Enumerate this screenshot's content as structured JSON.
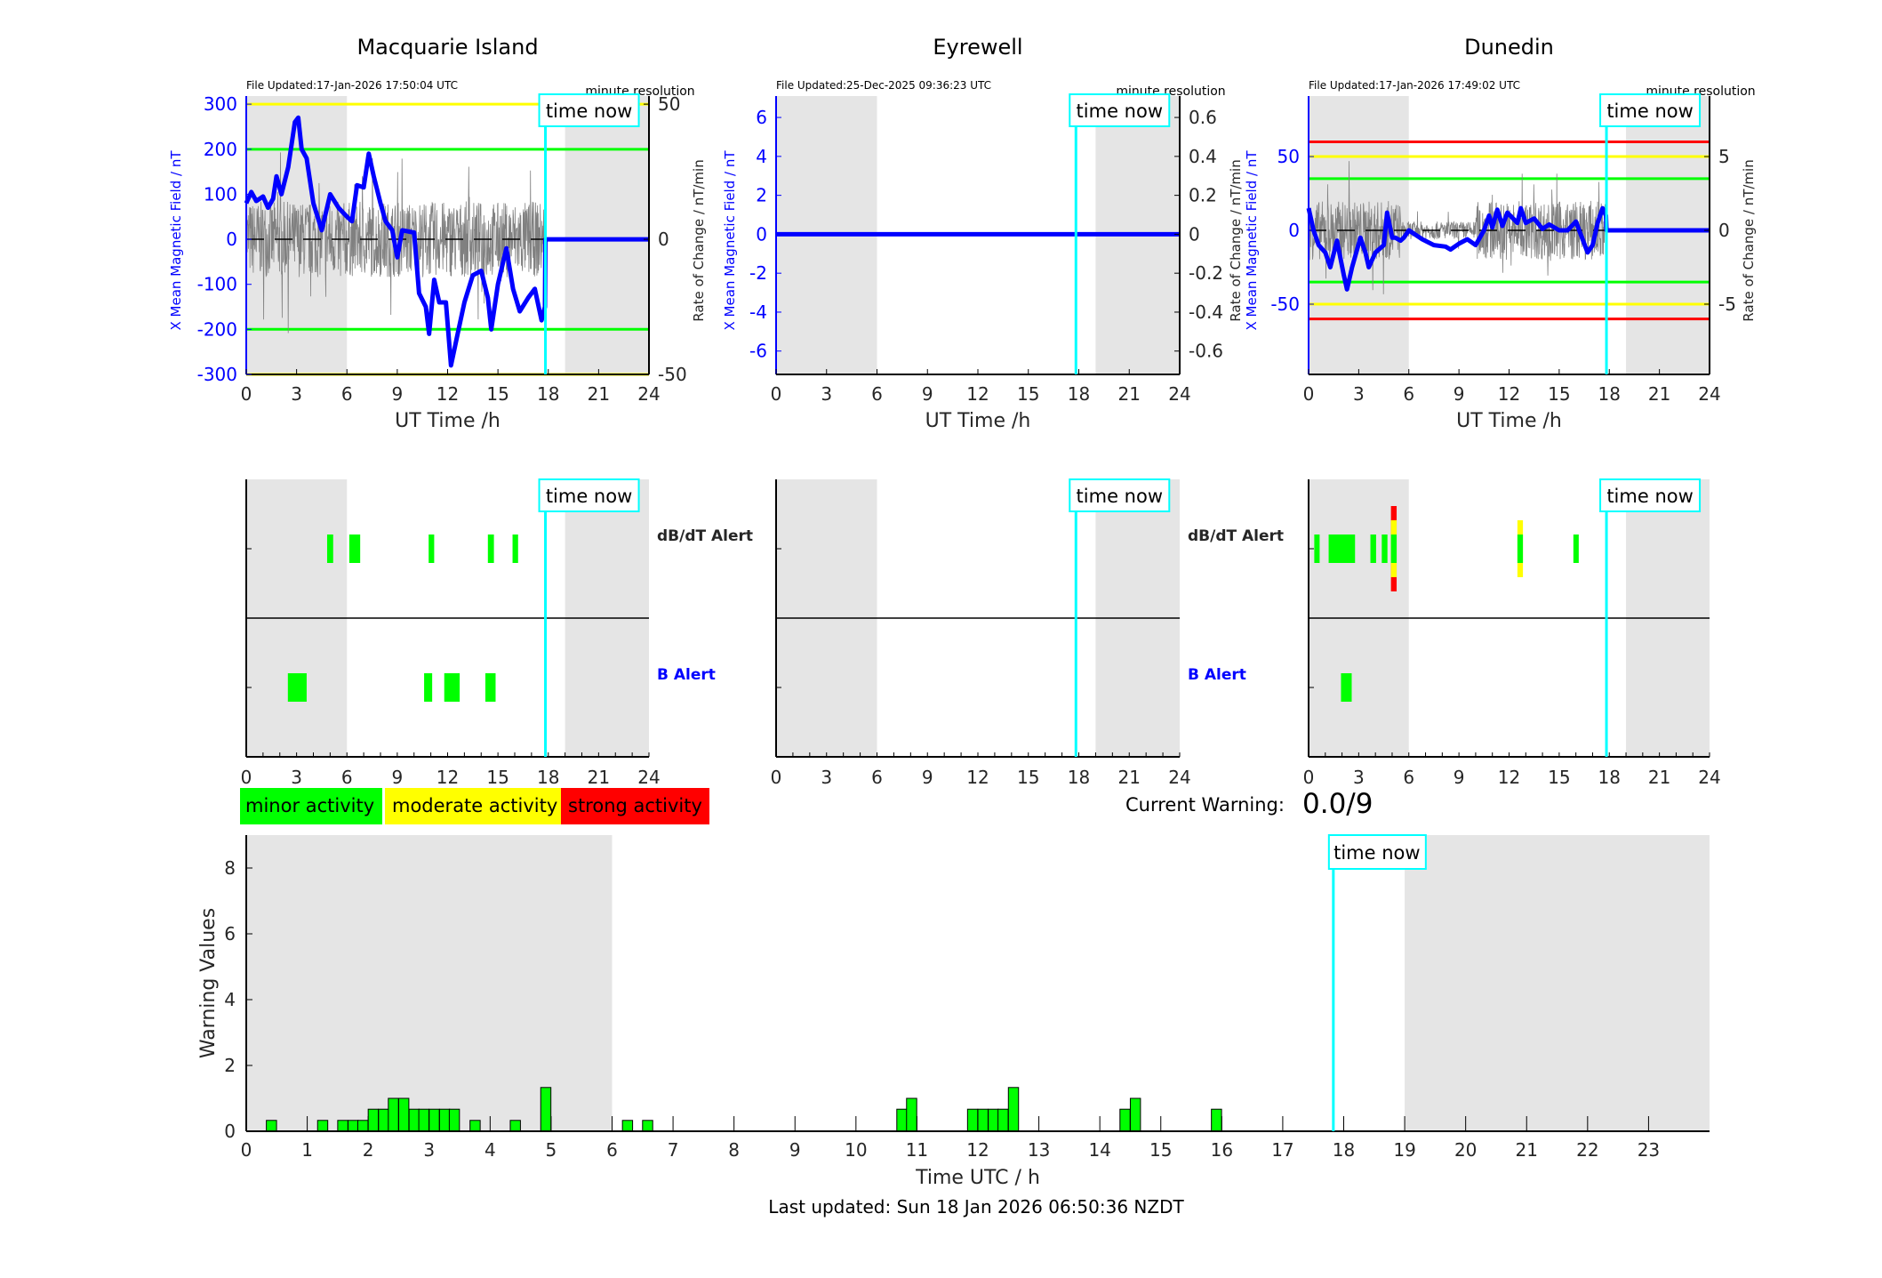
{
  "time_now_label": "time now",
  "colors": {
    "minor": "#00FF00",
    "moderate": "#FFFF00",
    "strong": "#FF0000",
    "field_line": "#0000FF",
    "time_now": "#00FFFF",
    "night_shading": "#E5E5E5",
    "rate_trace": "#808080"
  },
  "legend": {
    "minor": "minor activity",
    "moderate": "moderate activity",
    "strong": "strong activity"
  },
  "current_warning": {
    "label": "Current Warning:",
    "value": "0.0/9"
  },
  "footer": {
    "last_updated": "Last updated: Sun 18 Jan 2026 06:50:36 NZDT"
  },
  "chart_data": [
    {
      "type": "line",
      "title": "Macquarie Island",
      "file_updated": "File Updated:17-Jan-2026 17:50:04 UTC",
      "resolution": "minute resolution",
      "xlabel": "UT Time /h",
      "ylabel_left": "X Mean Magnetic Field / nT",
      "ylabel_right": "Rate of Change / nT/min",
      "xlim": [
        0,
        24
      ],
      "xticks": [
        0,
        3,
        6,
        9,
        12,
        15,
        18,
        21,
        24
      ],
      "ylim_left": [
        -300,
        318
      ],
      "yticks_left": [
        -300,
        -200,
        -100,
        0,
        100,
        200,
        300
      ],
      "ylim_right": [
        -50,
        53
      ],
      "yticks_right": [
        -50,
        0,
        50
      ],
      "shaded_hours": [
        [
          0,
          6
        ],
        [
          19,
          24
        ]
      ],
      "time_now_hour": 17.83,
      "thresholds_right": [
        {
          "value": 50,
          "level": "moderate"
        },
        {
          "value": -50,
          "level": "moderate"
        },
        {
          "value": 33.3,
          "level": "minor"
        },
        {
          "value": -33.3,
          "level": "minor"
        }
      ],
      "rate_amplitude": 14,
      "x_field": [
        [
          0,
          80
        ],
        [
          0.3,
          105
        ],
        [
          0.6,
          85
        ],
        [
          1,
          95
        ],
        [
          1.3,
          70
        ],
        [
          1.6,
          90
        ],
        [
          1.8,
          140
        ],
        [
          2.1,
          100
        ],
        [
          2.5,
          160
        ],
        [
          2.9,
          260
        ],
        [
          3.1,
          270
        ],
        [
          3.3,
          200
        ],
        [
          3.6,
          180
        ],
        [
          4,
          80
        ],
        [
          4.5,
          20
        ],
        [
          5,
          100
        ],
        [
          5.5,
          70
        ],
        [
          6,
          50
        ],
        [
          6.3,
          40
        ],
        [
          6.6,
          120
        ],
        [
          7,
          115
        ],
        [
          7.3,
          190
        ],
        [
          7.6,
          140
        ],
        [
          8,
          80
        ],
        [
          8.3,
          40
        ],
        [
          8.7,
          20
        ],
        [
          9,
          -40
        ],
        [
          9.3,
          20
        ],
        [
          10,
          15
        ],
        [
          10.3,
          -120
        ],
        [
          10.7,
          -150
        ],
        [
          10.9,
          -210
        ],
        [
          11.2,
          -90
        ],
        [
          11.5,
          -140
        ],
        [
          11.9,
          -140
        ],
        [
          12.2,
          -280
        ],
        [
          12.6,
          -210
        ],
        [
          13,
          -140
        ],
        [
          13.5,
          -80
        ],
        [
          14,
          -70
        ],
        [
          14.4,
          -130
        ],
        [
          14.6,
          -200
        ],
        [
          15,
          -100
        ],
        [
          15.5,
          -20
        ],
        [
          15.9,
          -110
        ],
        [
          16.3,
          -160
        ],
        [
          16.8,
          -130
        ],
        [
          17.2,
          -110
        ],
        [
          17.6,
          -180
        ],
        [
          17.8,
          -150
        ],
        [
          17.83,
          0
        ],
        [
          24,
          0
        ]
      ],
      "alerts": {
        "dbdt_label": "dB/dT Alert",
        "b_label": "B Alert",
        "dbdt": [
          [
            4.82,
            5.18,
            1
          ],
          [
            6.14,
            6.79,
            1
          ],
          [
            10.87,
            11.2,
            1
          ],
          [
            14.4,
            14.76,
            1
          ],
          [
            15.87,
            16.2,
            1
          ]
        ],
        "b": [
          [
            2.48,
            3.6,
            1
          ],
          [
            10.6,
            11.08,
            1
          ],
          [
            11.8,
            12.72,
            1
          ],
          [
            14.25,
            14.86,
            1
          ]
        ]
      }
    },
    {
      "type": "line",
      "title": "Eyrewell",
      "file_updated": "File Updated:25-Dec-2025 09:36:23 UTC",
      "resolution": "minute resolution",
      "xlabel": "UT Time /h",
      "ylabel_left": "X Mean Magnetic Field / nT",
      "ylabel_right": "Rate of Change / nT/min",
      "xlim": [
        0,
        24
      ],
      "xticks": [
        0,
        3,
        6,
        9,
        12,
        15,
        18,
        21,
        24
      ],
      "ylim_left": [
        -7.2,
        7.1
      ],
      "yticks_left": [
        -6,
        -4,
        -2,
        0,
        2,
        4,
        6
      ],
      "ylim_right": [
        -0.72,
        0.71
      ],
      "yticks_right": [
        -0.6,
        -0.4,
        -0.2,
        0,
        0.2,
        0.4,
        0.6
      ],
      "shaded_hours": [
        [
          0,
          6
        ],
        [
          19,
          24
        ]
      ],
      "time_now_hour": 17.83,
      "thresholds_right": [],
      "rate_amplitude": 0,
      "x_field": [
        [
          0,
          0
        ],
        [
          24,
          0
        ]
      ],
      "alerts": {
        "dbdt_label": "dB/dT Alert",
        "b_label": "B Alert",
        "dbdt": [],
        "b": []
      }
    },
    {
      "type": "line",
      "title": "Dunedin",
      "file_updated": "File Updated:17-Jan-2026 17:49:02 UTC",
      "resolution": "minute resolution",
      "xlabel": "UT Time /h",
      "ylabel_left": "X Mean Magnetic Field / nT",
      "ylabel_right": "Rate of Change / nT/min",
      "xlim": [
        0,
        24
      ],
      "xticks": [
        0,
        3,
        6,
        9,
        12,
        15,
        18,
        21,
        24
      ],
      "ylim_left": [
        -97.6,
        91
      ],
      "yticks_left": [
        -50,
        0,
        50
      ],
      "ylim_right": [
        -9.76,
        9.1
      ],
      "yticks_right": [
        -5,
        0,
        5
      ],
      "shaded_hours": [
        [
          0,
          6
        ],
        [
          19,
          24
        ]
      ],
      "time_now_hour": 17.83,
      "thresholds_right": [
        {
          "value": 6,
          "level": "strong"
        },
        {
          "value": -6,
          "level": "strong"
        },
        {
          "value": 5,
          "level": "moderate"
        },
        {
          "value": -5,
          "level": "moderate"
        },
        {
          "value": 3.5,
          "level": "minor"
        },
        {
          "value": -3.5,
          "level": "minor"
        }
      ],
      "rate_amplitude": 2,
      "x_field": [
        [
          0,
          15
        ],
        [
          0.3,
          0
        ],
        [
          0.6,
          -10
        ],
        [
          1,
          -15
        ],
        [
          1.3,
          -25
        ],
        [
          1.7,
          -7
        ],
        [
          2.1,
          -30
        ],
        [
          2.3,
          -40
        ],
        [
          2.6,
          -25
        ],
        [
          3.1,
          -5
        ],
        [
          3.4,
          -15
        ],
        [
          3.6,
          -25
        ],
        [
          4,
          -15
        ],
        [
          4.5,
          -10
        ],
        [
          4.7,
          12
        ],
        [
          5,
          -5
        ],
        [
          5.2,
          -5
        ],
        [
          5.5,
          -7
        ],
        [
          5.7,
          -5
        ],
        [
          6,
          0
        ],
        [
          6.8,
          -6
        ],
        [
          7.5,
          -10
        ],
        [
          8.2,
          -11
        ],
        [
          8.5,
          -13
        ],
        [
          9,
          -9
        ],
        [
          9.5,
          -6
        ],
        [
          10,
          -10
        ],
        [
          10.5,
          0
        ],
        [
          10.8,
          10
        ],
        [
          11,
          2
        ],
        [
          11.3,
          14
        ],
        [
          11.6,
          3
        ],
        [
          11.9,
          12
        ],
        [
          12.5,
          5
        ],
        [
          12.7,
          15
        ],
        [
          13,
          5
        ],
        [
          13.5,
          8
        ],
        [
          14,
          1
        ],
        [
          14.4,
          4
        ],
        [
          15,
          0
        ],
        [
          15.5,
          0
        ],
        [
          16,
          6
        ],
        [
          16.3,
          -3
        ],
        [
          16.7,
          -15
        ],
        [
          17,
          -10
        ],
        [
          17.3,
          5
        ],
        [
          17.6,
          15
        ],
        [
          17.8,
          10
        ],
        [
          17.83,
          0
        ],
        [
          24,
          0
        ]
      ],
      "alerts": {
        "dbdt_label": "dB/dT Alert",
        "b_label": "B Alert",
        "dbdt": [
          [
            0.34,
            0.66,
            1
          ],
          [
            1.2,
            2.78,
            1
          ],
          [
            3.7,
            4.04,
            1
          ],
          [
            4.38,
            4.72,
            1
          ],
          [
            4.93,
            5.27,
            3
          ],
          [
            12.5,
            12.83,
            2
          ],
          [
            15.85,
            16.17,
            1
          ]
        ],
        "b": [
          [
            1.94,
            2.58,
            1
          ]
        ]
      }
    },
    {
      "type": "bar",
      "xlabel": "Time UTC / h",
      "ylabel": "Warning Values",
      "xlim": [
        0,
        24
      ],
      "xticks": [
        0,
        1,
        2,
        3,
        4,
        5,
        6,
        7,
        8,
        9,
        10,
        11,
        12,
        13,
        14,
        15,
        16,
        17,
        18,
        19,
        20,
        21,
        22,
        23
      ],
      "ylim": [
        0,
        9
      ],
      "yticks": [
        0,
        2,
        4,
        6,
        8
      ],
      "shaded_hours": [
        [
          0,
          6
        ],
        [
          19,
          24
        ]
      ],
      "time_now_hour": 17.83,
      "bin_width_hours": 0.1667,
      "bars": [
        [
          0.33,
          0.33
        ],
        [
          1.17,
          0.33
        ],
        [
          1.5,
          0.33
        ],
        [
          1.67,
          0.33
        ],
        [
          1.83,
          0.33
        ],
        [
          2.0,
          0.67
        ],
        [
          2.17,
          0.67
        ],
        [
          2.33,
          1.0
        ],
        [
          2.5,
          1.0
        ],
        [
          2.67,
          0.67
        ],
        [
          2.83,
          0.67
        ],
        [
          3.0,
          0.67
        ],
        [
          3.17,
          0.67
        ],
        [
          3.33,
          0.67
        ],
        [
          3.67,
          0.33
        ],
        [
          4.33,
          0.33
        ],
        [
          4.83,
          1.33
        ],
        [
          6.17,
          0.33
        ],
        [
          6.5,
          0.33
        ],
        [
          10.67,
          0.67
        ],
        [
          10.83,
          1.0
        ],
        [
          11.83,
          0.67
        ],
        [
          12.0,
          0.67
        ],
        [
          12.17,
          0.67
        ],
        [
          12.33,
          0.67
        ],
        [
          12.5,
          1.33
        ],
        [
          14.33,
          0.67
        ],
        [
          14.5,
          1.0
        ],
        [
          15.83,
          0.67
        ]
      ]
    }
  ]
}
